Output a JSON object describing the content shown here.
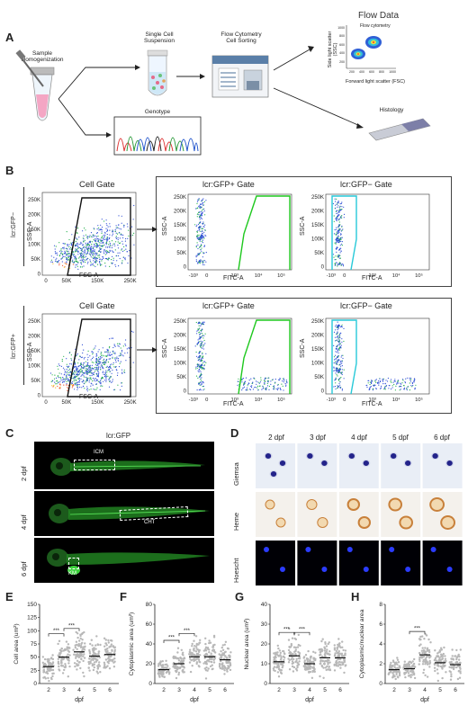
{
  "panels": {
    "A": "A",
    "B": "B",
    "C": "C",
    "D": "D",
    "E": "E",
    "F": "F",
    "G": "G",
    "H": "H"
  },
  "panelA": {
    "sample_homogenization": "Sample\nHomogenization",
    "single_cell_suspension": "Single Cell\nSuspension",
    "flow_cytometry_sorting": "Flow Cytometry\nCell Sorting",
    "genotype": "Genotype",
    "flow_data": "Flow Data",
    "flow_inset_title": "Flow cytometry",
    "flow_inset_ylabel": "Side light scatter\n(SSC)",
    "flow_inset_xlabel": "Forward light scatter (FSC)",
    "histology": "Histology",
    "inset_yticks": [
      "1000",
      "800",
      "600",
      "400",
      "200"
    ],
    "inset_xticks": [
      "200",
      "400",
      "600",
      "800",
      "1000"
    ]
  },
  "panelB": {
    "row1_label": "lcr:GFP−",
    "row2_label": "lcr:GFP+",
    "cell_gate": "Cell Gate",
    "gfp_pos_gate": "lcr:GFP+ Gate",
    "gfp_neg_gate": "lcr:GFP− Gate",
    "ssc_label": "SSC-A",
    "fsc_label": "FSC-A",
    "fitc_label": "FITC-A",
    "ssc_ticks": [
      "250K",
      "200K",
      "150K",
      "100K",
      "50K",
      "0"
    ],
    "fsc_ticks": [
      "0",
      "50K",
      "150K",
      "250K"
    ],
    "fitc_ticks": [
      "-10³",
      "0",
      "10³",
      "10⁴",
      "10⁵"
    ],
    "gate_colors": {
      "pos": "#1ec81e",
      "neg": "#27c9d8"
    }
  },
  "panelC": {
    "title": "lcr:GFP",
    "rows": [
      "2 dpf",
      "4 dpf",
      "6 dpf"
    ],
    "labels": {
      "icm": "ICM",
      "cht": "CHT",
      "km": "KM"
    }
  },
  "panelD": {
    "columns": [
      "2 dpf",
      "3 dpf",
      "4 dpf",
      "5 dpf",
      "6 dpf"
    ],
    "rows": [
      "Giemsa",
      "Heme",
      "Hoescht"
    ]
  },
  "plots": {
    "E": {
      "ylabel": "Cell area (um²)",
      "xlabel": "dpf",
      "yticks": [
        "150",
        "125",
        "100",
        "75",
        "50",
        "25",
        "0"
      ]
    },
    "F": {
      "ylabel": "Cytoplasmic area (um²)",
      "xlabel": "dpf",
      "yticks": [
        "80",
        "60",
        "40",
        "20",
        "0"
      ]
    },
    "G": {
      "ylabel": "Nuclear area (um²)",
      "xlabel": "dpf",
      "yticks": [
        "40",
        "30",
        "20",
        "10",
        "0"
      ]
    },
    "H": {
      "ylabel": "Cytoplasmic/nuclear area",
      "xlabel": "dpf",
      "yticks": [
        "8",
        "6",
        "4",
        "2",
        "0"
      ]
    },
    "xticks": [
      "2",
      "3",
      "4",
      "5",
      "6"
    ],
    "sig": "***"
  },
  "chart_data": [
    {
      "type": "scatter",
      "title": "",
      "xlabel": "dpf",
      "ylabel": "Cell area (um²)",
      "categories": [
        "2",
        "3",
        "4",
        "5",
        "6"
      ],
      "medians": [
        32,
        50,
        60,
        52,
        55
      ],
      "ylim": [
        0,
        150
      ],
      "significance": [
        {
          "pair": [
            "2",
            "3"
          ],
          "label": "***"
        },
        {
          "pair": [
            "3",
            "4"
          ],
          "label": "***"
        }
      ]
    },
    {
      "type": "scatter",
      "title": "",
      "xlabel": "dpf",
      "ylabel": "Cytoplasmic area (um²)",
      "categories": [
        "2",
        "3",
        "4",
        "5",
        "6"
      ],
      "medians": [
        14,
        20,
        27,
        27,
        24
      ],
      "ylim": [
        0,
        80
      ],
      "significance": [
        {
          "pair": [
            "2",
            "3"
          ],
          "label": "***"
        },
        {
          "pair": [
            "3",
            "4"
          ],
          "label": "***"
        }
      ]
    },
    {
      "type": "scatter",
      "title": "",
      "xlabel": "dpf",
      "ylabel": "Nuclear area (um²)",
      "categories": [
        "2",
        "3",
        "4",
        "5",
        "6"
      ],
      "medians": [
        11,
        14,
        10,
        13,
        13
      ],
      "ylim": [
        0,
        40
      ],
      "significance": [
        {
          "pair": [
            "2",
            "3"
          ],
          "label": "***"
        },
        {
          "pair": [
            "3",
            "4"
          ],
          "label": "***"
        }
      ]
    },
    {
      "type": "scatter",
      "title": "",
      "xlabel": "dpf",
      "ylabel": "Cytoplasmic/nuclear area",
      "categories": [
        "2",
        "3",
        "4",
        "5",
        "6"
      ],
      "medians": [
        1.4,
        1.5,
        2.9,
        2.1,
        1.9
      ],
      "ylim": [
        0,
        8
      ],
      "significance": [
        {
          "pair": [
            "3",
            "4"
          ],
          "label": "***"
        }
      ]
    }
  ]
}
